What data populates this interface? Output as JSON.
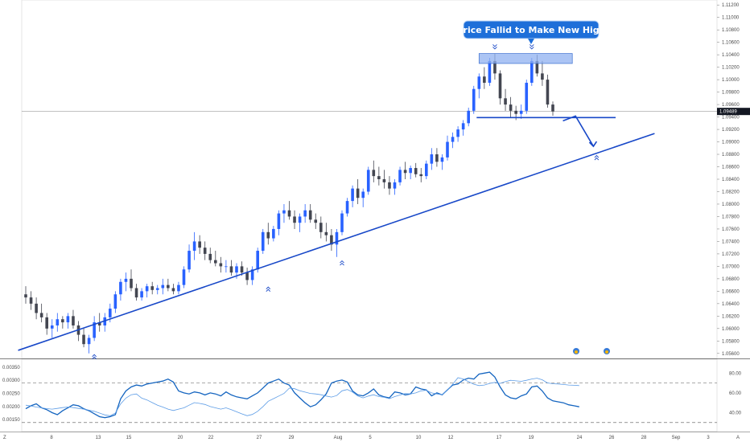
{
  "chart_data": [
    {
      "type": "candlestick",
      "price_axis_ticks": [
        "1.11200",
        "1.11000",
        "1.10800",
        "1.10600",
        "1.10400",
        "1.10200",
        "1.10000",
        "1.09800",
        "1.09600",
        "1.09400",
        "1.09200",
        "1.09000",
        "1.08800",
        "1.08600",
        "1.08400",
        "1.08200",
        "1.08000",
        "1.07800",
        "1.07600",
        "1.07400",
        "1.07200",
        "1.07000",
        "1.06800",
        "1.06600",
        "1.06400",
        "1.06200",
        "1.06000",
        "1.05800",
        "1.05600"
      ],
      "current_price": "1.09489",
      "ylim": [
        1.0552,
        1.1128
      ],
      "x_ticks": [
        "8",
        "13",
        "15",
        "20",
        "22",
        "27",
        "29",
        "Aug",
        "5",
        "10",
        "12",
        "17",
        "19",
        "24",
        "26",
        "28",
        "Sep",
        "3"
      ],
      "annotation": "Price Fallid to Make New High",
      "colors": {
        "up": "#2962ff",
        "down": "#434651",
        "trendline": "#1848c8",
        "callout": "#1e6fd9",
        "zone": "#8fb0f0"
      },
      "key_levels": {
        "neckline": 1.0939,
        "resistance_zone": [
          1.1026,
          1.1042
        ]
      },
      "trendline": {
        "start": [
          1,
          1.0565
        ],
        "end": [
          108,
          1.0898
        ]
      },
      "series": [
        {
          "values": [
            [
              1.0655,
              1.0668,
              1.064,
              1.065
            ],
            [
              1.065,
              1.066,
              1.063,
              1.064
            ],
            [
              1.064,
              1.065,
              1.0615,
              1.0625
            ],
            [
              1.0625,
              1.064,
              1.061,
              1.0618
            ],
            [
              1.0618,
              1.0625,
              1.059,
              1.06
            ],
            [
              1.06,
              1.0615,
              1.0585,
              1.0605
            ],
            [
              1.0605,
              1.0625,
              1.0595,
              1.0615
            ],
            [
              1.0615,
              1.062,
              1.06,
              1.061
            ],
            [
              1.061,
              1.0625,
              1.06,
              1.062
            ],
            [
              1.062,
              1.063,
              1.06,
              1.0605
            ],
            [
              1.0605,
              1.0612,
              1.058,
              1.059
            ],
            [
              1.059,
              1.06,
              1.057,
              1.0575
            ],
            [
              1.0575,
              1.059,
              1.056,
              1.0585
            ],
            [
              1.0585,
              1.062,
              1.058,
              1.061
            ],
            [
              1.061,
              1.0625,
              1.0595,
              1.0605
            ],
            [
              1.0605,
              1.0625,
              1.0595,
              1.0618
            ],
            [
              1.0618,
              1.064,
              1.061,
              1.0632
            ],
            [
              1.0632,
              1.066,
              1.0625,
              1.0655
            ],
            [
              1.0655,
              1.068,
              1.0645,
              1.0675
            ],
            [
              1.0675,
              1.069,
              1.066,
              1.068
            ],
            [
              1.068,
              1.0695,
              1.066,
              1.0665
            ],
            [
              1.0665,
              1.0672,
              1.0645,
              1.065
            ],
            [
              1.065,
              1.0665,
              1.0645,
              1.066
            ],
            [
              1.066,
              1.0672,
              1.065,
              1.0668
            ],
            [
              1.0668,
              1.0675,
              1.0655,
              1.0662
            ],
            [
              1.0662,
              1.067,
              1.0655,
              1.0665
            ],
            [
              1.0665,
              1.068,
              1.0655,
              1.067
            ],
            [
              1.067,
              1.068,
              1.066,
              1.0665
            ],
            [
              1.0665,
              1.0672,
              1.0655,
              1.066
            ],
            [
              1.066,
              1.0675,
              1.0655,
              1.067
            ],
            [
              1.067,
              1.07,
              1.0665,
              1.0695
            ],
            [
              1.0695,
              1.0735,
              1.069,
              1.0725
            ],
            [
              1.0725,
              1.0755,
              1.071,
              1.074
            ],
            [
              1.074,
              1.075,
              1.072,
              1.073
            ],
            [
              1.073,
              1.074,
              1.071,
              1.072
            ],
            [
              1.072,
              1.073,
              1.0705,
              1.071
            ],
            [
              1.071,
              1.0725,
              1.07,
              1.0705
            ],
            [
              1.0705,
              1.0715,
              1.069,
              1.07
            ],
            [
              1.07,
              1.071,
              1.069,
              1.07
            ],
            [
              1.07,
              1.071,
              1.0685,
              1.069
            ],
            [
              1.069,
              1.0705,
              1.068,
              1.07
            ],
            [
              1.07,
              1.0708,
              1.0685,
              1.069
            ],
            [
              1.069,
              1.0698,
              1.067,
              1.0678
            ],
            [
              1.0678,
              1.07,
              1.067,
              1.0695
            ],
            [
              1.0695,
              1.073,
              1.069,
              1.0725
            ],
            [
              1.0725,
              1.076,
              1.072,
              1.0755
            ],
            [
              1.0755,
              1.077,
              1.0735,
              1.0745
            ],
            [
              1.0745,
              1.0765,
              1.074,
              1.076
            ],
            [
              1.076,
              1.079,
              1.075,
              1.0785
            ],
            [
              1.0785,
              1.08,
              1.077,
              1.079
            ],
            [
              1.079,
              1.0805,
              1.0775,
              1.078
            ],
            [
              1.078,
              1.079,
              1.076,
              1.077
            ],
            [
              1.077,
              1.0785,
              1.0755,
              1.078
            ],
            [
              1.078,
              1.08,
              1.077,
              1.079
            ],
            [
              1.079,
              1.08,
              1.077,
              1.0775
            ],
            [
              1.0775,
              1.0785,
              1.076,
              1.077
            ],
            [
              1.077,
              1.078,
              1.0745,
              1.0755
            ],
            [
              1.0755,
              1.077,
              1.074,
              1.075
            ],
            [
              1.075,
              1.076,
              1.0725,
              1.0735
            ],
            [
              1.0735,
              1.076,
              1.0715,
              1.0755
            ],
            [
              1.0755,
              1.079,
              1.075,
              1.0785
            ],
            [
              1.0785,
              1.081,
              1.078,
              1.0805
            ],
            [
              1.0805,
              1.083,
              1.0795,
              1.0825
            ],
            [
              1.0825,
              1.084,
              1.08,
              1.081
            ],
            [
              1.081,
              1.0825,
              1.0795,
              1.082
            ],
            [
              1.082,
              1.086,
              1.0815,
              1.0855
            ],
            [
              1.0855,
              1.087,
              1.0835,
              1.0845
            ],
            [
              1.0845,
              1.086,
              1.083,
              1.084
            ],
            [
              1.084,
              1.0855,
              1.0825,
              1.0835
            ],
            [
              1.0835,
              1.0845,
              1.0815,
              1.0825
            ],
            [
              1.0825,
              1.084,
              1.0815,
              1.0835
            ],
            [
              1.0835,
              1.086,
              1.083,
              1.0855
            ],
            [
              1.0855,
              1.0868,
              1.084,
              1.085
            ],
            [
              1.085,
              1.0862,
              1.084,
              1.0858
            ],
            [
              1.0858,
              1.0866,
              1.0843,
              1.0848
            ],
            [
              1.0848,
              1.0858,
              1.0835,
              1.0845
            ],
            [
              1.0845,
              1.087,
              1.084,
              1.0865
            ],
            [
              1.0865,
              1.089,
              1.0855,
              1.088
            ],
            [
              1.088,
              1.089,
              1.086,
              1.0868
            ],
            [
              1.0868,
              1.088,
              1.0855,
              1.0875
            ],
            [
              1.0875,
              1.091,
              1.087,
              1.09
            ],
            [
              1.09,
              1.0915,
              1.089,
              1.0908
            ],
            [
              1.0908,
              1.0925,
              1.09,
              1.092
            ],
            [
              1.092,
              1.0935,
              1.091,
              1.093
            ],
            [
              1.093,
              1.0955,
              1.0925,
              1.095
            ],
            [
              1.095,
              1.099,
              1.0945,
              1.0985
            ],
            [
              1.0985,
              1.101,
              1.097,
              1.1005
            ],
            [
              1.1005,
              1.102,
              1.0985,
              1.0995
            ],
            [
              1.0995,
              1.1035,
              1.099,
              1.103
            ],
            [
              1.103,
              1.1042,
              1.1,
              1.101
            ],
            [
              1.101,
              1.1015,
              1.096,
              1.097
            ],
            [
              1.097,
              1.0985,
              1.095,
              1.096
            ],
            [
              1.096,
              1.0972,
              1.094,
              1.095
            ],
            [
              1.095,
              1.0958,
              1.0935,
              1.0945
            ],
            [
              1.0945,
              1.096,
              1.0937,
              1.095
            ],
            [
              1.095,
              1.1,
              1.0945,
              1.0995
            ],
            [
              1.0995,
              1.1035,
              1.099,
              1.103
            ],
            [
              1.103,
              1.104,
              1.1005,
              1.101
            ],
            [
              1.101,
              1.103,
              1.099,
              1.1
            ],
            [
              1.1,
              1.1008,
              1.0955,
              1.096
            ],
            [
              1.096,
              1.0965,
              1.0942,
              1.0949
            ]
          ]
        }
      ]
    },
    {
      "type": "line",
      "left_axis_ticks": [
        "0.00350",
        "0.00300",
        "0.00250",
        "0.00200",
        "0.00150"
      ],
      "right_axis_ticks": [
        "80.00",
        "60.00",
        "40.00"
      ],
      "dashed_levels": [
        70,
        30
      ],
      "series": [
        {
          "axis": "right",
          "color": "#1565c0",
          "values": [
            44,
            47,
            49,
            45,
            43,
            40,
            38,
            42,
            45,
            48,
            47,
            44,
            42,
            39,
            36,
            35,
            36,
            38,
            54,
            62,
            66,
            68,
            67,
            69,
            70,
            71,
            72,
            74,
            71,
            62,
            60,
            59,
            61,
            60,
            58,
            60,
            59,
            57,
            61,
            58,
            56,
            55,
            54,
            57,
            60,
            65,
            70,
            72,
            74,
            70,
            68,
            60,
            55,
            50,
            46,
            48,
            53,
            59,
            70,
            72,
            73,
            71,
            62,
            58,
            57,
            60,
            64,
            58,
            56,
            55,
            61,
            60,
            58,
            59,
            66,
            64,
            63,
            57,
            60,
            58,
            63,
            68,
            69,
            73,
            75,
            74,
            79,
            80,
            81,
            76,
            66,
            58,
            55,
            54,
            57,
            59,
            66,
            67,
            62,
            55,
            52,
            51,
            50,
            48,
            47,
            46
          ]
        },
        {
          "axis": "left",
          "color": "#5c9ce6",
          "values": [
            0.00205,
            0.00202,
            0.00198,
            0.00195,
            0.00192,
            0.0019,
            0.00193,
            0.00196,
            0.00198,
            0.00196,
            0.00193,
            0.0019,
            0.00186,
            0.00182,
            0.00175,
            0.00168,
            0.00165,
            0.00175,
            0.0021,
            0.00232,
            0.00245,
            0.00248,
            0.00232,
            0.00225,
            0.00215,
            0.00205,
            0.00198,
            0.0019,
            0.00185,
            0.0019,
            0.00195,
            0.00205,
            0.00215,
            0.00212,
            0.00208,
            0.002,
            0.00195,
            0.0019,
            0.00195,
            0.00188,
            0.0018,
            0.00172,
            0.00165,
            0.0017,
            0.00182,
            0.002,
            0.0022,
            0.0023,
            0.0024,
            0.0025,
            0.0027,
            0.00268,
            0.0026,
            0.00255,
            0.0025,
            0.00248,
            0.00245,
            0.0024,
            0.00236,
            0.00242,
            0.0026,
            0.00265,
            0.00255,
            0.0024,
            0.00233,
            0.0024,
            0.00245,
            0.00238,
            0.00235,
            0.0023,
            0.00238,
            0.00244,
            0.0025,
            0.00248,
            0.00252,
            0.0026,
            0.00262,
            0.00252,
            0.00248,
            0.00245,
            0.00262,
            0.00285,
            0.0031,
            0.00305,
            0.00295,
            0.00285,
            0.0028,
            0.00282,
            0.00288,
            0.00292,
            0.00288,
            0.00295,
            0.003,
            0.00298,
            0.00296,
            0.003,
            0.00305,
            0.00308,
            0.00302,
            0.0029,
            0.00287,
            0.00286,
            0.00284,
            0.00282,
            0.00281,
            0.0028
          ]
        }
      ]
    }
  ]
}
